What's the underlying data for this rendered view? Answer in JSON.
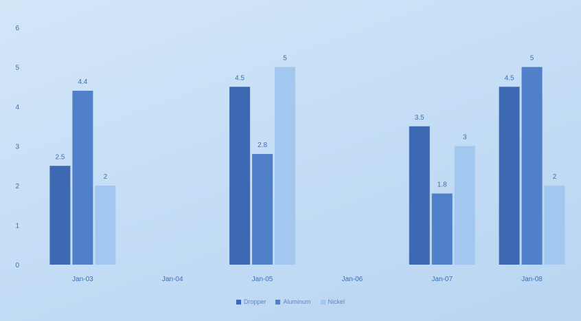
{
  "chart_data": {
    "type": "bar",
    "categories": [
      "Jan-03",
      "Jan-04",
      "Jan-05",
      "Jan-06",
      "Jan-07",
      "Jan-08"
    ],
    "series": [
      {
        "name": "Dropper",
        "color": "#3d68b2",
        "values": [
          2.5,
          null,
          4.5,
          null,
          3.5,
          4.5
        ]
      },
      {
        "name": "Aluminum",
        "color": "#4f80c9",
        "values": [
          4.4,
          null,
          2.8,
          null,
          1.8,
          5
        ]
      },
      {
        "name": "Nickel",
        "color": "#a3c8ef",
        "values": [
          2,
          null,
          5,
          null,
          3,
          2
        ]
      }
    ],
    "value_labels": [
      [
        "2.5",
        null,
        "4.5",
        null,
        "3.5",
        "4.5"
      ],
      [
        "4.4",
        null,
        "2.8",
        null,
        "1.8",
        "5"
      ],
      [
        "2",
        null,
        "5",
        null,
        "3",
        "2"
      ]
    ],
    "ylim": [
      0,
      6
    ],
    "yticks": [
      "0",
      "1",
      "2",
      "3",
      "4",
      "5",
      "6"
    ],
    "grid": false,
    "legend_position": "bottom"
  }
}
